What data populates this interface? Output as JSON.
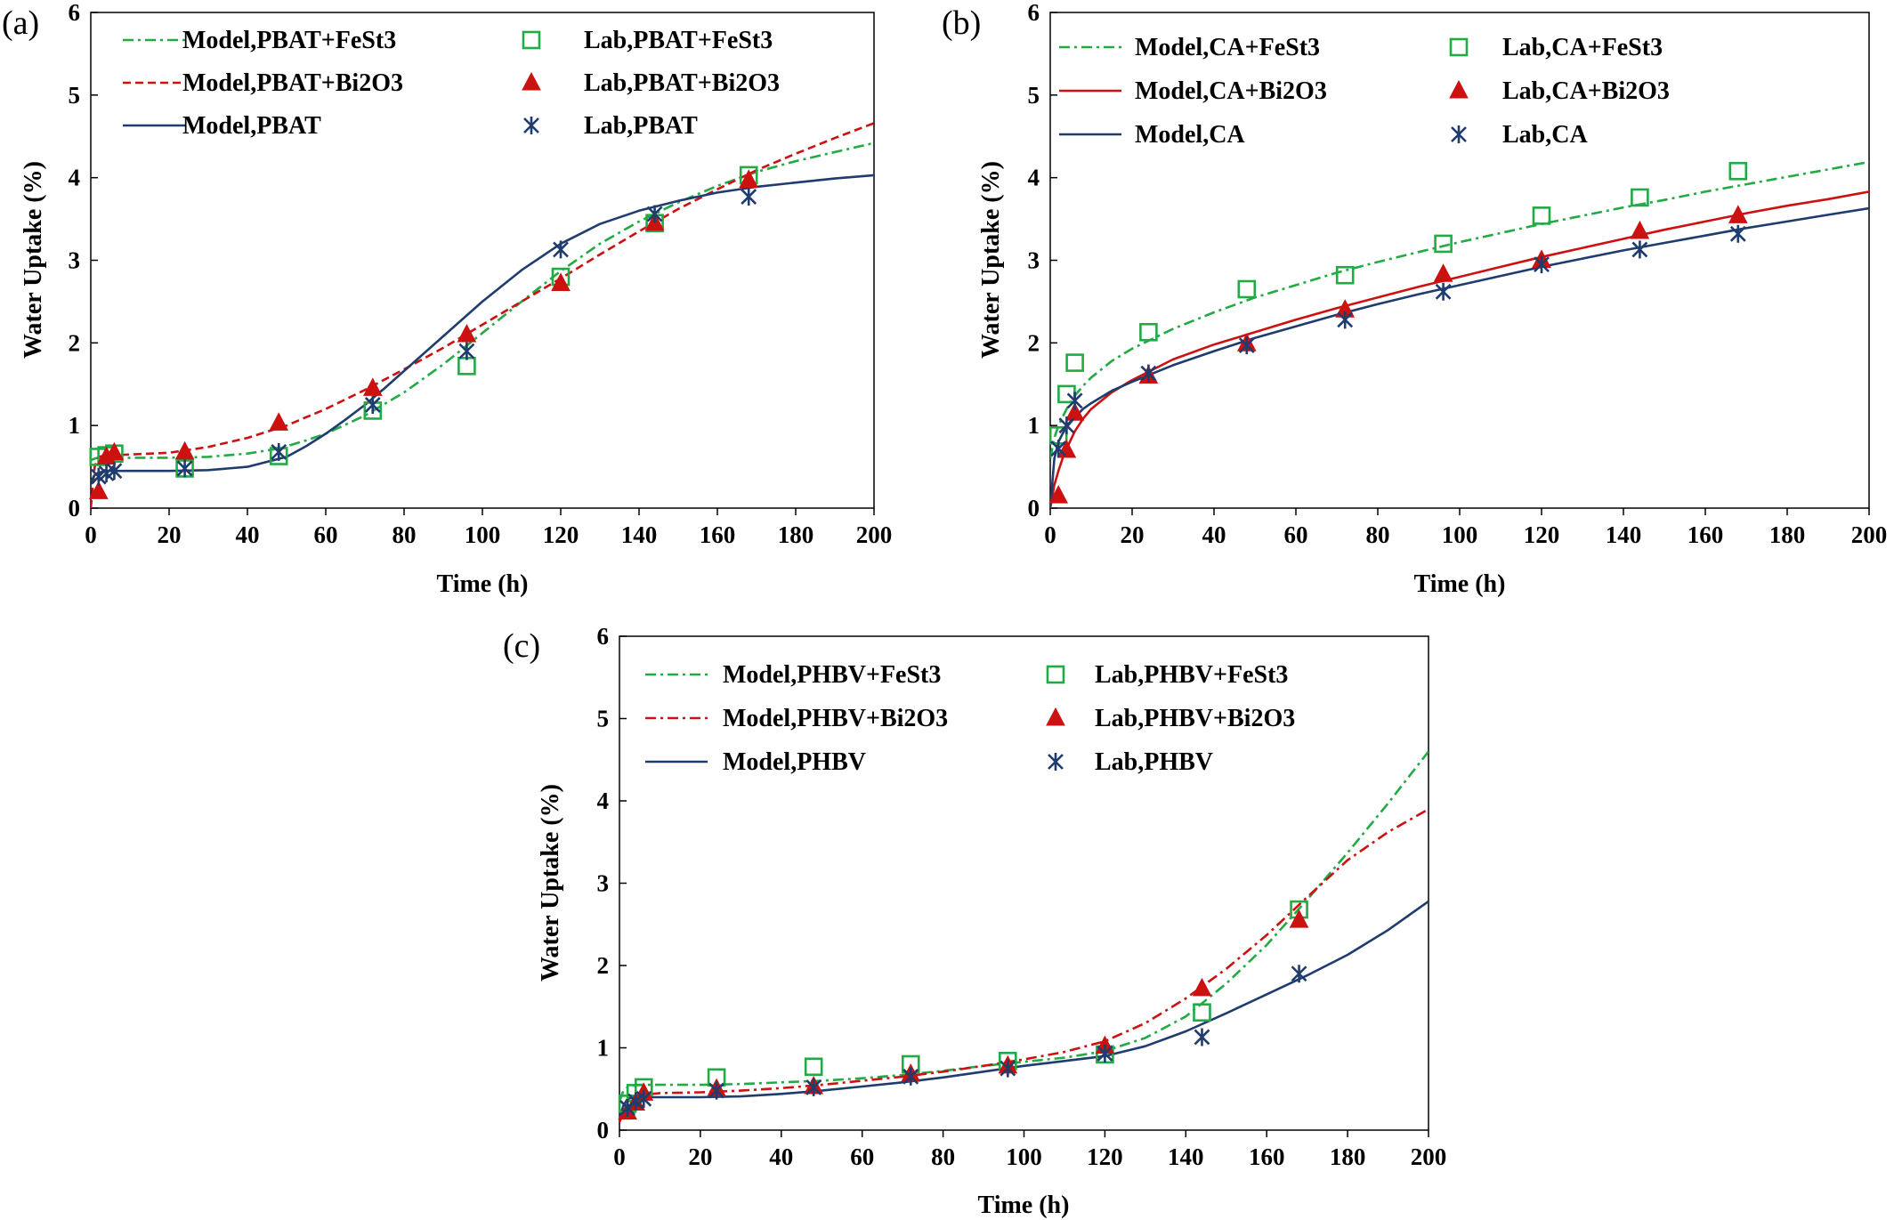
{
  "chart_data": [
    {
      "id": "a",
      "panel_label": "(a)",
      "type": "line",
      "xlabel": "Time (h)",
      "ylabel": "Water Uptake (%)",
      "xlim": [
        0,
        200
      ],
      "ylim": [
        0,
        6
      ],
      "xticks": [
        0,
        20,
        40,
        60,
        80,
        100,
        120,
        140,
        160,
        180,
        200
      ],
      "yticks": [
        0,
        1,
        2,
        3,
        4,
        5,
        6
      ],
      "grid": false,
      "legend_position": "top-left",
      "legend_columns": 2,
      "series": [
        {
          "name": "Model,PBAT+FeSt3",
          "kind": "line",
          "style": "dashdot",
          "color": "#22AA44",
          "x": [
            0,
            1,
            2,
            4,
            6,
            10,
            20,
            30,
            40,
            48,
            55,
            60,
            70,
            80,
            90,
            100,
            110,
            120,
            130,
            140,
            150,
            160,
            170,
            180,
            190,
            200
          ],
          "y": [
            0.58,
            0.6,
            0.61,
            0.61,
            0.61,
            0.61,
            0.61,
            0.62,
            0.66,
            0.72,
            0.82,
            0.9,
            1.12,
            1.4,
            1.74,
            2.12,
            2.5,
            2.87,
            3.2,
            3.47,
            3.7,
            3.9,
            4.07,
            4.2,
            4.31,
            4.42
          ]
        },
        {
          "name": "Model,PBAT+Bi2O3",
          "kind": "line",
          "style": "dashed",
          "color": "#CC1111",
          "x": [
            0,
            1,
            2,
            4,
            6,
            10,
            20,
            30,
            40,
            50,
            60,
            70,
            80,
            90,
            100,
            110,
            120,
            130,
            140,
            150,
            160,
            170,
            180,
            190,
            200
          ],
          "y": [
            0.0,
            0.5,
            0.62,
            0.64,
            0.64,
            0.65,
            0.67,
            0.74,
            0.85,
            1.0,
            1.2,
            1.43,
            1.68,
            1.94,
            2.22,
            2.5,
            2.78,
            3.07,
            3.35,
            3.62,
            3.86,
            4.09,
            4.29,
            4.48,
            4.66
          ]
        },
        {
          "name": "Model,PBAT",
          "kind": "line",
          "style": "solid",
          "color": "#1F3C6E",
          "x": [
            0,
            1,
            2,
            4,
            6,
            10,
            20,
            30,
            40,
            50,
            55,
            60,
            65,
            70,
            75,
            80,
            90,
            100,
            110,
            120,
            130,
            140,
            150,
            160,
            170,
            180,
            190,
            200
          ],
          "y": [
            0.32,
            0.4,
            0.43,
            0.45,
            0.45,
            0.45,
            0.45,
            0.46,
            0.5,
            0.62,
            0.75,
            0.9,
            1.07,
            1.25,
            1.45,
            1.66,
            2.08,
            2.5,
            2.88,
            3.2,
            3.44,
            3.6,
            3.72,
            3.82,
            3.89,
            3.94,
            3.99,
            4.03
          ]
        },
        {
          "name": "Lab,PBAT+FeSt3",
          "kind": "marker",
          "marker": "square",
          "color": "#22AA44",
          "x": [
            2,
            4,
            6,
            24,
            48,
            72,
            96,
            120,
            144,
            168
          ],
          "y": [
            0.62,
            0.64,
            0.66,
            0.48,
            0.63,
            1.18,
            1.72,
            2.8,
            3.45,
            4.03
          ]
        },
        {
          "name": "Lab,PBAT+Bi2O3",
          "kind": "marker",
          "marker": "triangle",
          "color": "#CC1111",
          "x": [
            2,
            4,
            6,
            24,
            48,
            72,
            96,
            120,
            144,
            168
          ],
          "y": [
            0.2,
            0.62,
            0.67,
            0.68,
            1.03,
            1.45,
            2.1,
            2.72,
            3.45,
            3.97
          ]
        },
        {
          "name": "Lab,PBAT",
          "kind": "marker",
          "marker": "asterisk",
          "color": "#1F3C6E",
          "x": [
            2,
            4,
            6,
            24,
            48,
            72,
            96,
            120,
            144,
            168
          ],
          "y": [
            0.38,
            0.42,
            0.45,
            0.48,
            0.68,
            1.25,
            1.9,
            3.13,
            3.56,
            3.77
          ]
        }
      ]
    },
    {
      "id": "b",
      "panel_label": "(b)",
      "type": "line",
      "xlabel": "Time (h)",
      "ylabel": "Water Uptake (%)",
      "xlim": [
        0,
        200
      ],
      "ylim": [
        0,
        6
      ],
      "xticks": [
        0,
        20,
        40,
        60,
        80,
        100,
        120,
        140,
        160,
        180,
        200
      ],
      "yticks": [
        0,
        1,
        2,
        3,
        4,
        5,
        6
      ],
      "grid": false,
      "legend_position": "top-left",
      "legend_columns": 2,
      "series": [
        {
          "name": "Model,CA+FeSt3",
          "kind": "line",
          "style": "dashdot",
          "color": "#22AA44",
          "x": [
            0,
            1,
            2,
            3,
            4,
            6,
            8,
            10,
            15,
            20,
            30,
            40,
            50,
            60,
            70,
            80,
            90,
            100,
            110,
            120,
            130,
            140,
            150,
            160,
            170,
            180,
            190,
            200
          ],
          "y": [
            0.6,
            0.85,
            1.0,
            1.1,
            1.2,
            1.36,
            1.48,
            1.58,
            1.78,
            1.93,
            2.17,
            2.37,
            2.55,
            2.7,
            2.85,
            2.98,
            3.1,
            3.22,
            3.33,
            3.44,
            3.54,
            3.64,
            3.73,
            3.83,
            3.92,
            4.01,
            4.1,
            4.19
          ]
        },
        {
          "name": "Model,CA+Bi2O3",
          "kind": "line",
          "style": "solid",
          "color": "#CC1111",
          "x": [
            0,
            1,
            2,
            3,
            4,
            6,
            8,
            10,
            15,
            20,
            30,
            40,
            50,
            60,
            70,
            80,
            90,
            100,
            110,
            120,
            130,
            140,
            150,
            160,
            170,
            180,
            190,
            200
          ],
          "y": [
            0.0,
            0.28,
            0.45,
            0.6,
            0.72,
            0.93,
            1.08,
            1.2,
            1.4,
            1.55,
            1.8,
            1.98,
            2.13,
            2.28,
            2.42,
            2.55,
            2.68,
            2.8,
            2.92,
            3.04,
            3.15,
            3.26,
            3.37,
            3.47,
            3.57,
            3.66,
            3.74,
            3.83
          ]
        },
        {
          "name": "Model,CA",
          "kind": "line",
          "style": "solid",
          "color": "#1F3C6E",
          "x": [
            0,
            1,
            2,
            3,
            4,
            6,
            8,
            10,
            15,
            20,
            30,
            40,
            50,
            60,
            70,
            80,
            90,
            100,
            110,
            120,
            130,
            140,
            150,
            160,
            170,
            180,
            190,
            200
          ],
          "y": [
            0.0,
            0.6,
            0.8,
            0.9,
            0.98,
            1.1,
            1.2,
            1.27,
            1.42,
            1.53,
            1.73,
            1.9,
            2.06,
            2.2,
            2.34,
            2.47,
            2.59,
            2.7,
            2.81,
            2.92,
            3.02,
            3.12,
            3.21,
            3.3,
            3.39,
            3.47,
            3.55,
            3.63
          ]
        },
        {
          "name": "Lab,CA+FeSt3",
          "kind": "marker",
          "marker": "square",
          "color": "#22AA44",
          "x": [
            2,
            4,
            6,
            24,
            48,
            72,
            96,
            120,
            144,
            168
          ],
          "y": [
            0.88,
            1.38,
            1.76,
            2.13,
            2.65,
            2.82,
            3.2,
            3.54,
            3.76,
            4.08
          ]
        },
        {
          "name": "Lab,CA+Bi2O3",
          "kind": "marker",
          "marker": "triangle",
          "color": "#CC1111",
          "x": [
            2,
            4,
            6,
            24,
            48,
            72,
            96,
            120,
            144,
            168
          ],
          "y": [
            0.15,
            0.7,
            1.15,
            1.6,
            1.99,
            2.4,
            2.83,
            3.0,
            3.35,
            3.54
          ]
        },
        {
          "name": "Lab,CA",
          "kind": "marker",
          "marker": "asterisk",
          "color": "#1F3C6E",
          "x": [
            2,
            4,
            6,
            24,
            48,
            72,
            96,
            120,
            144,
            168
          ],
          "y": [
            0.72,
            1.0,
            1.3,
            1.63,
            1.97,
            2.28,
            2.62,
            2.95,
            3.13,
            3.32
          ]
        }
      ]
    },
    {
      "id": "c",
      "panel_label": "(c)",
      "type": "line",
      "xlabel": "Time (h)",
      "ylabel": "Water Uptake (%)",
      "xlim": [
        0,
        200
      ],
      "ylim": [
        0,
        6
      ],
      "xticks": [
        0,
        20,
        40,
        60,
        80,
        100,
        120,
        140,
        160,
        180,
        200
      ],
      "yticks": [
        0,
        1,
        2,
        3,
        4,
        5,
        6
      ],
      "grid": false,
      "legend_position": "top-left",
      "legend_columns": 2,
      "series": [
        {
          "name": "Model,PHBV+FeSt3",
          "kind": "line",
          "style": "dashdot",
          "color": "#22AA44",
          "x": [
            0,
            1,
            2,
            4,
            6,
            10,
            20,
            30,
            40,
            50,
            60,
            70,
            80,
            90,
            100,
            110,
            120,
            130,
            140,
            150,
            160,
            170,
            180,
            190,
            200
          ],
          "y": [
            0.35,
            0.48,
            0.52,
            0.55,
            0.55,
            0.55,
            0.55,
            0.56,
            0.58,
            0.6,
            0.63,
            0.67,
            0.72,
            0.78,
            0.83,
            0.88,
            0.96,
            1.12,
            1.38,
            1.78,
            2.25,
            2.8,
            3.37,
            3.97,
            4.6
          ]
        },
        {
          "name": "Model,PHBV+Bi2O3",
          "kind": "line",
          "style": "dashdot",
          "color": "#CC1111",
          "x": [
            0,
            1,
            2,
            4,
            6,
            10,
            20,
            30,
            40,
            50,
            60,
            70,
            80,
            90,
            100,
            110,
            120,
            130,
            140,
            150,
            160,
            170,
            180,
            190,
            200
          ],
          "y": [
            0.1,
            0.2,
            0.3,
            0.4,
            0.43,
            0.45,
            0.46,
            0.48,
            0.51,
            0.55,
            0.6,
            0.65,
            0.71,
            0.78,
            0.86,
            0.95,
            1.08,
            1.3,
            1.6,
            1.96,
            2.37,
            2.83,
            3.28,
            3.62,
            3.9
          ]
        },
        {
          "name": "Model,PHBV",
          "kind": "line",
          "style": "solid",
          "color": "#1F3C6E",
          "x": [
            0,
            1,
            2,
            4,
            6,
            10,
            20,
            30,
            40,
            50,
            60,
            70,
            80,
            90,
            100,
            110,
            120,
            130,
            140,
            150,
            160,
            170,
            180,
            190,
            200
          ],
          "y": [
            0.15,
            0.3,
            0.38,
            0.4,
            0.4,
            0.4,
            0.4,
            0.41,
            0.44,
            0.48,
            0.53,
            0.58,
            0.64,
            0.71,
            0.78,
            0.84,
            0.9,
            1.02,
            1.2,
            1.42,
            1.65,
            1.88,
            2.13,
            2.43,
            2.78
          ]
        },
        {
          "name": "Lab,PHBV+FeSt3",
          "kind": "marker",
          "marker": "square",
          "color": "#22AA44",
          "x": [
            2,
            4,
            6,
            24,
            48,
            72,
            96,
            120,
            144,
            168
          ],
          "y": [
            0.32,
            0.45,
            0.52,
            0.64,
            0.77,
            0.8,
            0.84,
            0.92,
            1.43,
            2.68
          ]
        },
        {
          "name": "Lab,PHBV+Bi2O3",
          "kind": "marker",
          "marker": "triangle",
          "color": "#CC1111",
          "x": [
            2,
            4,
            6,
            24,
            48,
            72,
            96,
            120,
            144,
            168
          ],
          "y": [
            0.22,
            0.33,
            0.45,
            0.5,
            0.53,
            0.68,
            0.78,
            1.02,
            1.72,
            2.55
          ]
        },
        {
          "name": "Lab,PHBV",
          "kind": "marker",
          "marker": "asterisk",
          "color": "#1F3C6E",
          "x": [
            2,
            4,
            6,
            24,
            48,
            72,
            96,
            120,
            144,
            168
          ],
          "y": [
            0.27,
            0.35,
            0.38,
            0.48,
            0.52,
            0.65,
            0.75,
            0.93,
            1.13,
            1.9
          ]
        }
      ]
    }
  ]
}
